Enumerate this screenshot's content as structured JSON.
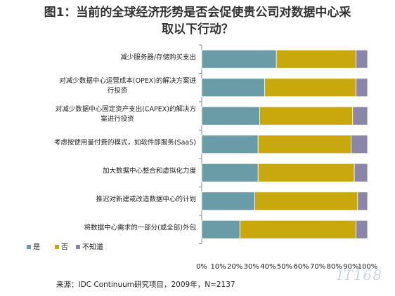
{
  "header": {
    "title_line1": "图1：当前的全球经济形势是否会促使贵公司对数据中心采",
    "title_line2": "取以下行动？"
  },
  "chart_data": {
    "type": "bar",
    "stacked": true,
    "orientation": "horizontal",
    "title": "图1：当前的全球经济形势是否会促使贵公司对数据中心采取以下行动？",
    "categories": [
      [
        "减少服务器/存储购买支出"
      ],
      [
        "对减少数据中心运营成本(OPEX)的解决方案进",
        "行投资"
      ],
      [
        "对减少数据中心固定资产支出(CAPEX)的解决方",
        "案进行投资"
      ],
      [
        "考虑按使用量付费的模式，如软件即服务(SaaS)"
      ],
      [
        "加大数据中心整合和虚拟化力度"
      ],
      [
        "推迟对新建或改造数据中心的计划"
      ],
      [
        "将数据中心需求的一部分(或全部)外包"
      ]
    ],
    "series": [
      {
        "name": "是",
        "color": "#6a9ca8",
        "values": [
          45,
          38,
          35,
          34,
          34,
          32,
          23
        ]
      },
      {
        "name": "否",
        "color": "#c8a80c",
        "values": [
          48,
          55,
          56,
          56,
          58,
          62,
          70
        ]
      },
      {
        "name": "不知道",
        "color": "#8a86a8",
        "values": [
          7,
          7,
          9,
          10,
          8,
          6,
          7
        ]
      }
    ],
    "xlim": [
      0,
      100
    ],
    "ticks": [
      "0%",
      "10%",
      "20%",
      "30%",
      "40%",
      "50%",
      "60%",
      "70%",
      "80%",
      "90%",
      "100%"
    ],
    "grid": false,
    "legend": "bottom-left"
  },
  "footer": {
    "source": "来源：IDC Continuum研究项目，2009年，N=2137",
    "watermark": "IT168"
  }
}
